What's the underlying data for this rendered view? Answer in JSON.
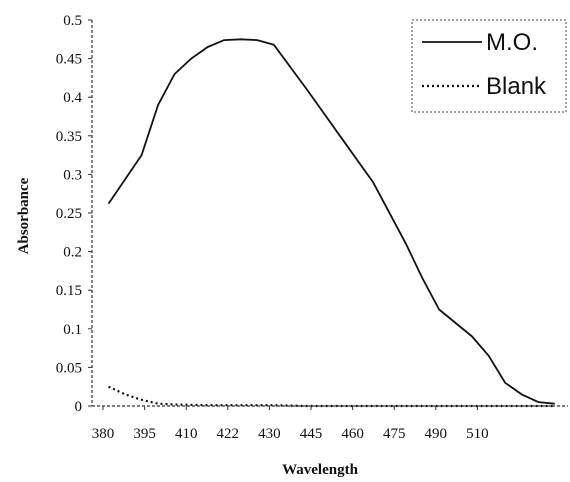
{
  "chart_data": {
    "type": "line",
    "title": "",
    "xlabel": "Wavelength",
    "ylabel": "Absorbance",
    "x_ticks": [
      "380",
      "395",
      "410",
      "422",
      "430",
      "445",
      "460",
      "475",
      "490",
      "510"
    ],
    "y_ticks": [
      "0",
      "0.05",
      "0.1",
      "0.15",
      "0.2",
      "0.25",
      "0.3",
      "0.35",
      "0.4",
      "0.45",
      "0.5"
    ],
    "ylim": [
      0,
      0.5
    ],
    "grid": false,
    "legend_position": "top-right",
    "series": [
      {
        "name": "M.O.",
        "style": "solid",
        "color": "#111111",
        "x": [
          380,
          390,
          395,
          400,
          405,
          410,
          415,
          420,
          425,
          430,
          440,
          445,
          450,
          460,
          470,
          475,
          480,
          490,
          495,
          500,
          505,
          510,
          515
        ],
        "y": [
          0.262,
          0.325,
          0.39,
          0.43,
          0.45,
          0.465,
          0.474,
          0.475,
          0.474,
          0.468,
          0.41,
          0.38,
          0.35,
          0.29,
          0.21,
          0.165,
          0.125,
          0.09,
          0.065,
          0.03,
          0.015,
          0.005,
          0.003
        ]
      },
      {
        "name": "Blank",
        "style": "dotted",
        "color": "#111111",
        "x": [
          380,
          385,
          390,
          395,
          400,
          410,
          420,
          430,
          440,
          450,
          460,
          470,
          480,
          490,
          500,
          510,
          515
        ],
        "y": [
          0.025,
          0.015,
          0.008,
          0.003,
          0.002,
          0.001,
          0.001,
          0.001,
          0.0,
          0.0,
          0.0,
          0.0,
          0.0,
          0.0,
          0.0,
          0.0,
          0.0
        ]
      }
    ]
  }
}
